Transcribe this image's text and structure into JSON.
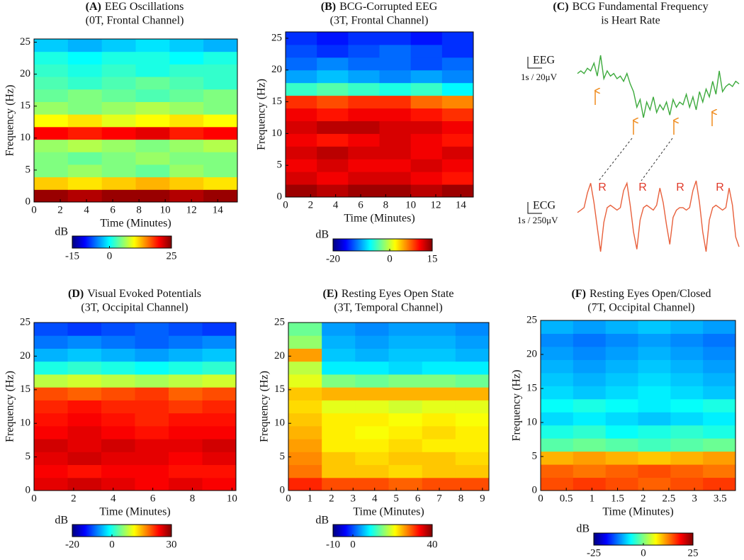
{
  "chart_data": [
    {
      "type": "heatmap",
      "label": "(A)",
      "title": "EEG Oscillations",
      "subtitle": "(0T, Frontal Channel)",
      "xlabel": "Time (Minutes)",
      "ylabel": "Frequency (Hz)",
      "colormap": "jet",
      "colorbar_label": "dB",
      "xlim": [
        0,
        15.5
      ],
      "xticks": [
        0,
        2,
        4,
        6,
        8,
        10,
        12,
        14
      ],
      "ylim": [
        0,
        25.5
      ],
      "yticks": [
        0,
        5,
        10,
        15,
        20,
        25
      ],
      "clim": [
        -15,
        25
      ],
      "cticks": [
        -15,
        0,
        25
      ],
      "z": [
        [
          24,
          23,
          24,
          24,
          23,
          24
        ],
        [
          12,
          11,
          12,
          13,
          12,
          11
        ],
        [
          5,
          6,
          5,
          4,
          6,
          5
        ],
        [
          5,
          4,
          5,
          6,
          5,
          5
        ],
        [
          6,
          7,
          6,
          5,
          6,
          7
        ],
        [
          20,
          19,
          20,
          21,
          19,
          20
        ],
        [
          10,
          11,
          9,
          10,
          11,
          10
        ],
        [
          6,
          5,
          6,
          7,
          6,
          5
        ],
        [
          4,
          5,
          4,
          3,
          4,
          5
        ],
        [
          3,
          2,
          3,
          4,
          3,
          2
        ],
        [
          2,
          1,
          2,
          1,
          2,
          2
        ],
        [
          1,
          0,
          1,
          1,
          0,
          1
        ],
        [
          -2,
          -3,
          -2,
          -1,
          -2,
          -3
        ]
      ]
    },
    {
      "type": "heatmap",
      "label": "(B)",
      "title": "BCG-Corrupted EEG",
      "subtitle": "(3T, Frontal Channel)",
      "xlabel": "Time (Minutes)",
      "ylabel": "Frequency (Hz)",
      "colormap": "jet",
      "colorbar_label": "dB",
      "xlim": [
        0,
        15
      ],
      "xticks": [
        0,
        2,
        4,
        6,
        8,
        10,
        12,
        14
      ],
      "ylim": [
        0,
        26
      ],
      "yticks": [
        0,
        5,
        10,
        15,
        20,
        25
      ],
      "clim": [
        -20,
        15
      ],
      "cticks": [
        -20,
        0,
        15
      ],
      "z": [
        [
          14,
          13,
          14,
          14,
          13,
          14
        ],
        [
          12,
          11,
          12,
          12,
          11,
          10
        ],
        [
          11,
          12,
          11,
          11,
          12,
          11
        ],
        [
          12,
          13,
          12,
          12,
          11,
          12
        ],
        [
          11,
          10,
          11,
          12,
          11,
          10
        ],
        [
          12,
          13,
          13,
          12,
          12,
          11
        ],
        [
          11,
          10,
          11,
          11,
          10,
          9
        ],
        [
          9,
          8,
          9,
          9,
          7,
          6
        ],
        [
          -5,
          -4,
          -5,
          -6,
          -5,
          -7
        ],
        [
          -10,
          -9,
          -10,
          -11,
          -10,
          -11
        ],
        [
          -12,
          -11,
          -12,
          -12,
          -13,
          -12
        ],
        [
          -13,
          -14,
          -13,
          -12,
          -13,
          -14
        ],
        [
          -14,
          -15,
          -14,
          -14,
          -15,
          -14
        ]
      ]
    },
    {
      "type": "line",
      "label": "(C)",
      "title": "BCG Fundamental Frequency",
      "subtitle": "is Heart Rate",
      "annotations": [
        "R",
        "R",
        "R",
        "R"
      ],
      "series": [
        {
          "name": "EEG",
          "scale_label": "1s / 20μV",
          "color": "#3daa3d",
          "values": [
            5,
            6,
            5,
            7,
            6,
            9,
            4,
            12,
            3,
            6,
            4,
            5,
            3,
            4,
            2,
            5,
            1,
            -2,
            -8,
            -5,
            -12,
            -6,
            -9,
            -4,
            -10,
            -7,
            -9,
            -6,
            -11,
            -5,
            -8,
            -6,
            -7,
            -3,
            -8,
            -4,
            -9,
            -2,
            -6,
            -1,
            -4,
            2,
            -3,
            6,
            -2,
            0,
            1,
            0,
            2,
            1
          ]
        },
        {
          "name": "ECG",
          "scale_label": "1s / 250μV",
          "color": "#e8603c",
          "values": [
            0,
            1,
            2,
            8,
            12,
            4,
            -6,
            -16,
            -4,
            2,
            3,
            2,
            1,
            2,
            9,
            12,
            3,
            -8,
            -15,
            -3,
            2,
            3,
            2,
            1,
            3,
            10,
            4,
            -5,
            -13,
            -2,
            1,
            2,
            2,
            1,
            2,
            9,
            13,
            4,
            -8,
            -16,
            -3,
            2,
            3,
            2,
            1,
            2,
            10,
            3,
            -10,
            -14
          ]
        }
      ]
    },
    {
      "type": "heatmap",
      "label": "(D)",
      "title": "Visual Evoked Potentials",
      "subtitle": "(3T, Occipital Channel)",
      "xlabel": "Time (Minutes)",
      "ylabel": "Frequency (Hz)",
      "colormap": "jet",
      "colorbar_label": "dB",
      "xlim": [
        0,
        10.2
      ],
      "xticks": [
        0,
        2,
        4,
        6,
        8,
        10
      ],
      "ylim": [
        0,
        25
      ],
      "yticks": [
        0,
        5,
        10,
        15,
        20,
        25
      ],
      "clim": [
        -20,
        30
      ],
      "cticks": [
        -20,
        0,
        30
      ],
      "z": [
        [
          25,
          26,
          25,
          24,
          25,
          24
        ],
        [
          24,
          23,
          24,
          24,
          23,
          23
        ],
        [
          25,
          26,
          25,
          25,
          24,
          25
        ],
        [
          26,
          25,
          26,
          25,
          25,
          26
        ],
        [
          24,
          25,
          24,
          23,
          24,
          24
        ],
        [
          23,
          24,
          23,
          22,
          23,
          23
        ],
        [
          22,
          23,
          22,
          22,
          21,
          22
        ],
        [
          20,
          19,
          20,
          21,
          19,
          20
        ],
        [
          8,
          9,
          8,
          7,
          8,
          9
        ],
        [
          0,
          1,
          0,
          -1,
          0,
          1
        ],
        [
          -5,
          -4,
          -5,
          -6,
          -5,
          -4
        ],
        [
          -8,
          -7,
          -8,
          -9,
          -8,
          -7
        ],
        [
          -10,
          -11,
          -10,
          -9,
          -10,
          -11
        ]
      ]
    },
    {
      "type": "heatmap",
      "label": "(E)",
      "title": "Resting Eyes Open State",
      "subtitle": "(3T, Temporal Channel)",
      "xlabel": "Time (Minutes)",
      "ylabel": "Frequency (Hz)",
      "colormap": "jet",
      "colorbar_label": "dB",
      "xlim": [
        0,
        9.3
      ],
      "xticks": [
        0,
        1,
        2,
        3,
        4,
        5,
        6,
        7,
        8,
        9
      ],
      "ylim": [
        0,
        25
      ],
      "yticks": [
        0,
        5,
        10,
        15,
        20,
        25
      ],
      "clim": [
        -10,
        40
      ],
      "cticks": [
        -10,
        0,
        40
      ],
      "z": [
        [
          32,
          30,
          30,
          29,
          30,
          30
        ],
        [
          28,
          24,
          24,
          23,
          24,
          24
        ],
        [
          27,
          24,
          23,
          24,
          24,
          23
        ],
        [
          26,
          22,
          22,
          23,
          22,
          22
        ],
        [
          25,
          22,
          21,
          22,
          23,
          22
        ],
        [
          24,
          22,
          22,
          21,
          22,
          21
        ],
        [
          23,
          20,
          20,
          19,
          20,
          20
        ],
        [
          24,
          25,
          25,
          25,
          25,
          25
        ],
        [
          20,
          15,
          14,
          15,
          15,
          14
        ],
        [
          18,
          8,
          8,
          7,
          8,
          8
        ],
        [
          26,
          6,
          5,
          6,
          6,
          5
        ],
        [
          16,
          5,
          4,
          5,
          5,
          4
        ],
        [
          14,
          4,
          3,
          4,
          4,
          3
        ]
      ]
    },
    {
      "type": "heatmap",
      "label": "(F)",
      "title": "Resting Eyes Open/Closed",
      "subtitle": "(7T, Occipital Channel)",
      "xlabel": "Time (Minutes)",
      "ylabel": "Frequency (Hz)",
      "colormap": "jet",
      "colorbar_label": "dB",
      "xlim": [
        0,
        3.8
      ],
      "xticks": [
        0,
        0.5,
        1,
        1.5,
        2,
        2.5,
        3,
        3.5
      ],
      "ylim": [
        0,
        25
      ],
      "yticks": [
        0,
        5,
        10,
        15,
        20,
        25
      ],
      "clim": [
        -25,
        25
      ],
      "cticks": [
        -25,
        0,
        25
      ],
      "z": [
        [
          15,
          16,
          15,
          14,
          15,
          16
        ],
        [
          14,
          13,
          14,
          15,
          14,
          13
        ],
        [
          10,
          11,
          10,
          9,
          10,
          11
        ],
        [
          -2,
          -1,
          -2,
          -3,
          -2,
          -1
        ],
        [
          -5,
          -4,
          -6,
          -5,
          -4,
          -5
        ],
        [
          -8,
          -7,
          -8,
          -9,
          -8,
          -7
        ],
        [
          -6,
          -5,
          -6,
          -7,
          -6,
          -5
        ],
        [
          -8,
          -9,
          -8,
          -7,
          -8,
          -9
        ],
        [
          -9,
          -10,
          -9,
          -8,
          -9,
          -10
        ],
        [
          -10,
          -11,
          -10,
          -9,
          -10,
          -11
        ],
        [
          -11,
          -12,
          -11,
          -10,
          -11,
          -12
        ],
        [
          -12,
          -13,
          -12,
          -11,
          -12,
          -13
        ],
        [
          -10,
          -11,
          -10,
          -9,
          -10,
          -11
        ]
      ]
    }
  ]
}
